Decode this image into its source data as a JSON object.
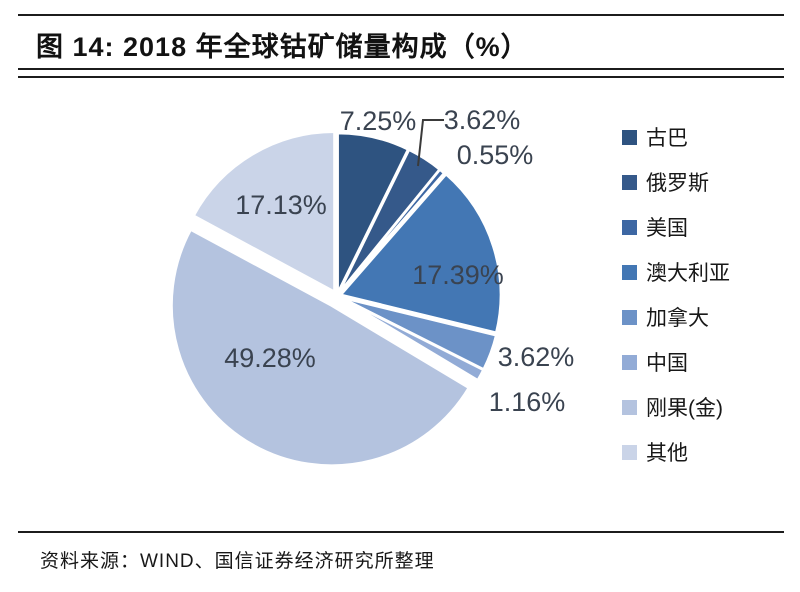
{
  "figure": {
    "title": "图 14: 2018 年全球钴矿储量构成（%）",
    "source": "资料来源：WIND、国信证券经济研究所整理"
  },
  "chart_data": {
    "type": "pie",
    "title": "2018 年全球钴矿储量构成（%）",
    "legend_position": "right",
    "start_angle_deg": 0,
    "direction": "clockwise",
    "label_color": "#3a4350",
    "slice_border_color": "#ffffff",
    "items": [
      {
        "label": "古巴",
        "value": 7.25,
        "display": "7.25%",
        "color": "#2E5380"
      },
      {
        "label": "俄罗斯",
        "value": 3.62,
        "display": "3.62%",
        "color": "#35598A"
      },
      {
        "label": "美国",
        "value": 0.55,
        "display": "0.55%",
        "color": "#3D67A3"
      },
      {
        "label": "澳大利亚",
        "value": 17.39,
        "display": "17.39%",
        "color": "#4377B4"
      },
      {
        "label": "加拿大",
        "value": 3.62,
        "display": "3.62%",
        "color": "#6C92C7"
      },
      {
        "label": "中国",
        "value": 1.16,
        "display": "1.16%",
        "color": "#92ABD6"
      },
      {
        "label": "刚果(金)",
        "value": 49.28,
        "display": "49.28%",
        "color": "#B4C3DF"
      },
      {
        "label": "其他",
        "value": 17.13,
        "display": "17.13%",
        "color": "#CAD4E8"
      }
    ]
  }
}
